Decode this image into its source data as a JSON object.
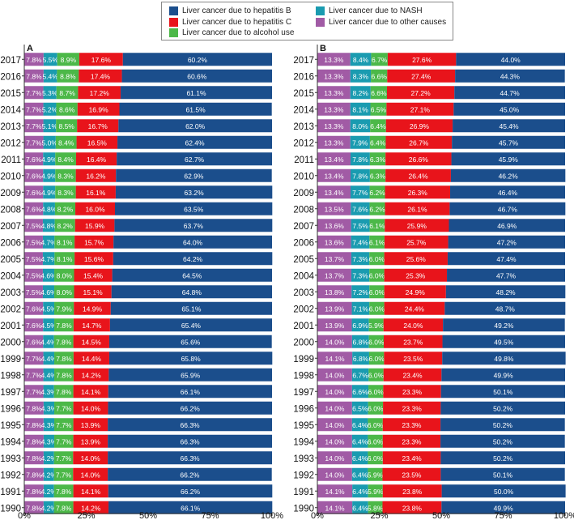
{
  "colors": {
    "hepB": "#1b4e8c",
    "hepC": "#e8141b",
    "alcohol": "#4cb848",
    "nash": "#1a9bb0",
    "other": "#a15ba5"
  },
  "legend": {
    "hepB": "Liver cancer due to hepatitis B",
    "hepC": "Liver cancer due to hepatitis C",
    "alcohol": "Liver cancer due to alcohol use",
    "nash": "Liver cancer due to NASH",
    "other": "Liver cancer due to other causes"
  },
  "chart_data": {
    "type": "bar",
    "orientation": "horizontal",
    "stacked": "percent",
    "series_order": [
      "other",
      "nash",
      "alcohol",
      "hepC",
      "hepB"
    ],
    "categories": [
      "2017",
      "2016",
      "2015",
      "2014",
      "2013",
      "2012",
      "2011",
      "2010",
      "2009",
      "2008",
      "2007",
      "2006",
      "2005",
      "2004",
      "2003",
      "2002",
      "2001",
      "2000",
      "1999",
      "1998",
      "1997",
      "1996",
      "1995",
      "1994",
      "1993",
      "1992",
      "1991",
      "1990"
    ],
    "xlim": [
      0,
      100
    ],
    "xticks": [
      "0%",
      "25%",
      "50%",
      "75%",
      "100%"
    ],
    "panels": [
      {
        "label": "A",
        "series": {
          "other": [
            7.8,
            7.8,
            7.7,
            7.7,
            7.7,
            7.7,
            7.6,
            7.6,
            7.6,
            7.6,
            7.5,
            7.5,
            7.5,
            7.5,
            7.5,
            7.6,
            7.6,
            7.6,
            7.7,
            7.7,
            7.7,
            7.8,
            7.8,
            7.8,
            7.8,
            7.8,
            7.8,
            7.8
          ],
          "nash": [
            5.5,
            5.4,
            5.3,
            5.2,
            5.1,
            5.0,
            4.9,
            4.9,
            4.9,
            4.8,
            4.8,
            4.7,
            4.7,
            4.6,
            4.6,
            4.5,
            4.5,
            4.4,
            4.4,
            4.4,
            4.3,
            4.3,
            4.3,
            4.3,
            4.2,
            4.2,
            4.2,
            4.2
          ],
          "alcohol": [
            8.9,
            8.8,
            8.7,
            8.6,
            8.5,
            8.4,
            8.4,
            8.3,
            8.3,
            8.2,
            8.2,
            8.1,
            8.1,
            8.0,
            8.0,
            7.9,
            7.8,
            7.8,
            7.8,
            7.8,
            7.8,
            7.7,
            7.7,
            7.7,
            7.7,
            7.7,
            7.8,
            7.8
          ],
          "hepC": [
            17.6,
            17.4,
            17.2,
            16.9,
            16.7,
            16.5,
            16.4,
            16.2,
            16.1,
            16.0,
            15.9,
            15.7,
            15.6,
            15.4,
            15.1,
            14.9,
            14.7,
            14.5,
            14.4,
            14.2,
            14.1,
            14.0,
            13.9,
            13.9,
            14.0,
            14.0,
            14.1,
            14.2
          ],
          "hepB": [
            60.2,
            60.6,
            61.1,
            61.5,
            62.0,
            62.4,
            62.7,
            62.9,
            63.2,
            63.5,
            63.7,
            64.0,
            64.2,
            64.5,
            64.8,
            65.1,
            65.4,
            65.6,
            65.8,
            65.9,
            66.1,
            66.2,
            66.3,
            66.3,
            66.3,
            66.2,
            66.2,
            66.1
          ]
        }
      },
      {
        "label": "B",
        "series": {
          "other": [
            13.3,
            13.3,
            13.3,
            13.3,
            13.3,
            13.3,
            13.4,
            13.4,
            13.4,
            13.5,
            13.6,
            13.6,
            13.7,
            13.7,
            13.8,
            13.9,
            13.9,
            14.0,
            14.1,
            14.0,
            14.0,
            14.0,
            14.0,
            14.0,
            14.0,
            14.0,
            14.1,
            14.1
          ],
          "nash": [
            8.4,
            8.3,
            8.2,
            8.1,
            8.0,
            7.9,
            7.8,
            7.8,
            7.7,
            7.6,
            7.5,
            7.4,
            7.3,
            7.3,
            7.2,
            7.1,
            6.9,
            6.8,
            6.8,
            6.7,
            6.6,
            6.5,
            6.4,
            6.4,
            6.4,
            6.4,
            6.4,
            6.4
          ],
          "alcohol": [
            6.7,
            6.6,
            6.6,
            6.5,
            6.4,
            6.4,
            6.3,
            6.3,
            6.2,
            6.2,
            6.1,
            6.1,
            6.0,
            6.0,
            6.0,
            6.0,
            5.9,
            6.0,
            6.0,
            6.0,
            6.0,
            6.0,
            6.0,
            6.0,
            6.0,
            5.9,
            5.9,
            5.8
          ],
          "hepC": [
            27.6,
            27.4,
            27.2,
            27.1,
            26.9,
            26.7,
            26.6,
            26.4,
            26.3,
            26.1,
            25.9,
            25.7,
            25.6,
            25.3,
            24.9,
            24.4,
            24.0,
            23.7,
            23.5,
            23.4,
            23.3,
            23.3,
            23.3,
            23.3,
            23.4,
            23.5,
            23.8,
            23.8
          ],
          "hepB": [
            44.0,
            44.3,
            44.7,
            45.0,
            45.4,
            45.7,
            45.9,
            46.2,
            46.4,
            46.7,
            46.9,
            47.2,
            47.4,
            47.7,
            48.2,
            48.7,
            49.2,
            49.5,
            49.8,
            49.9,
            50.1,
            50.2,
            50.2,
            50.2,
            50.2,
            50.1,
            50.0,
            49.9
          ]
        }
      }
    ]
  }
}
